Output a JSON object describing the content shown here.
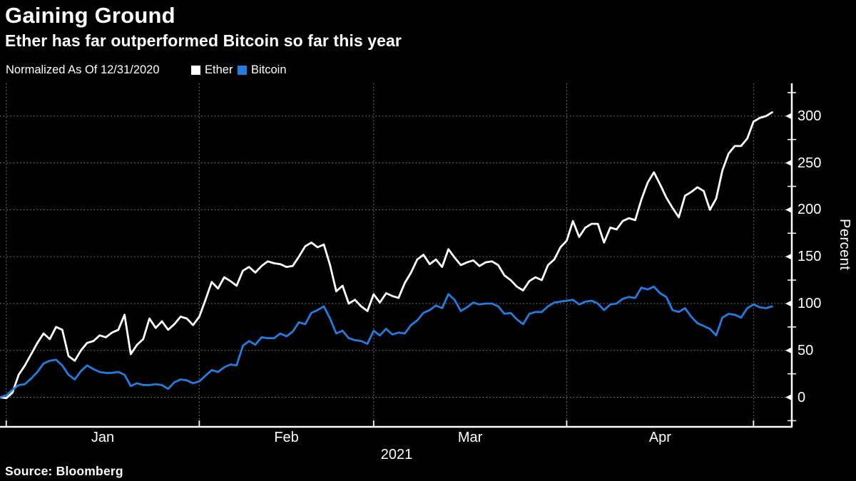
{
  "header": {
    "title": "Gaining Ground",
    "subtitle": "Ether has far outperformed Bitcoin so far this year"
  },
  "legend": {
    "note": "Normalized As Of 12/31/2020",
    "series": [
      {
        "label": "Ether",
        "color": "#FFFFFF"
      },
      {
        "label": "Bitcoin",
        "color": "#1F7EE0"
      }
    ]
  },
  "footer": {
    "source": "Source:  Bloomberg"
  },
  "colors": {
    "background": "#000000",
    "axis": "#FFFFFF",
    "grid": "#8A8A8A",
    "ether": "#FFFFFF",
    "bitcoin": "#1F7EE0"
  },
  "axes": {
    "y": {
      "label": "Percent",
      "unit": "Percent"
    },
    "x": {
      "year_label": "2021"
    }
  },
  "chart_data": {
    "type": "line",
    "title": "Gaining Ground",
    "subtitle": "Ether has far outperformed Bitcoin so far this year",
    "note": "Normalized As Of 12/31/2020",
    "ylabel": "Percent",
    "x_unit": "days since 12/31/2020",
    "x_range_days": [
      0,
      124
    ],
    "ylim": [
      -31,
      334
    ],
    "y_major_ticks": [
      0,
      50,
      100,
      150,
      200,
      250,
      300
    ],
    "y_minor_ticks": [
      -25,
      25,
      75,
      125,
      175,
      225,
      275,
      325
    ],
    "month_tick_days": [
      1,
      32,
      60,
      91,
      121
    ],
    "month_labels": [
      "Jan",
      "Feb",
      "Mar",
      "Apr"
    ],
    "grid": "dotted",
    "legend_position": "top-left",
    "series": [
      {
        "name": "Ether",
        "color": "#FFFFFF",
        "values": [
          0,
          -1,
          5,
          24,
          34,
          46,
          58,
          68,
          62,
          75,
          72,
          44,
          39,
          50,
          58,
          60,
          66,
          64,
          69,
          72,
          88,
          46,
          56,
          62,
          84,
          74,
          81,
          72,
          78,
          86,
          84,
          77,
          86,
          104,
          123,
          116,
          128,
          124,
          119,
          135,
          139,
          133,
          140,
          145,
          143,
          142,
          139,
          140,
          150,
          161,
          165,
          160,
          163,
          141,
          113,
          119,
          100,
          104,
          97,
          92,
          110,
          101,
          111,
          108,
          106,
          122,
          133,
          147,
          152,
          142,
          147,
          139,
          158,
          149,
          141,
          144,
          146,
          140,
          144,
          145,
          141,
          130,
          125,
          118,
          114,
          124,
          128,
          125,
          141,
          147,
          160,
          167,
          188,
          171,
          181,
          185,
          185,
          165,
          181,
          179,
          188,
          191,
          189,
          211,
          229,
          240,
          227,
          213,
          202,
          192,
          215,
          219,
          224,
          220,
          200,
          212,
          242,
          260,
          268,
          268,
          276,
          294,
          298,
          300,
          304
        ]
      },
      {
        "name": "Bitcoin",
        "color": "#1F7EE0",
        "values": [
          0,
          2,
          8,
          13,
          14,
          20,
          27,
          36,
          39,
          40,
          34,
          24,
          19,
          28,
          34,
          30,
          27,
          26,
          26,
          27,
          24,
          12,
          15,
          13,
          13,
          14,
          13,
          9,
          16,
          19,
          18,
          15,
          17,
          23,
          29,
          27,
          32,
          35,
          34,
          55,
          60,
          56,
          64,
          63,
          63,
          68,
          65,
          70,
          80,
          78,
          90,
          93,
          97,
          84,
          68,
          71,
          63,
          61,
          60,
          57,
          71,
          66,
          73,
          67,
          69,
          68,
          77,
          82,
          90,
          93,
          98,
          95,
          110,
          104,
          92,
          96,
          101,
          99,
          100,
          100,
          97,
          89,
          90,
          83,
          78,
          89,
          91,
          91,
          97,
          101,
          102,
          103,
          104,
          99,
          102,
          103,
          100,
          93,
          99,
          100,
          105,
          107,
          106,
          117,
          115,
          118,
          111,
          107,
          93,
          91,
          95,
          86,
          79,
          76,
          73,
          66,
          85,
          89,
          88,
          85,
          95,
          99,
          96,
          95,
          97
        ]
      }
    ]
  }
}
